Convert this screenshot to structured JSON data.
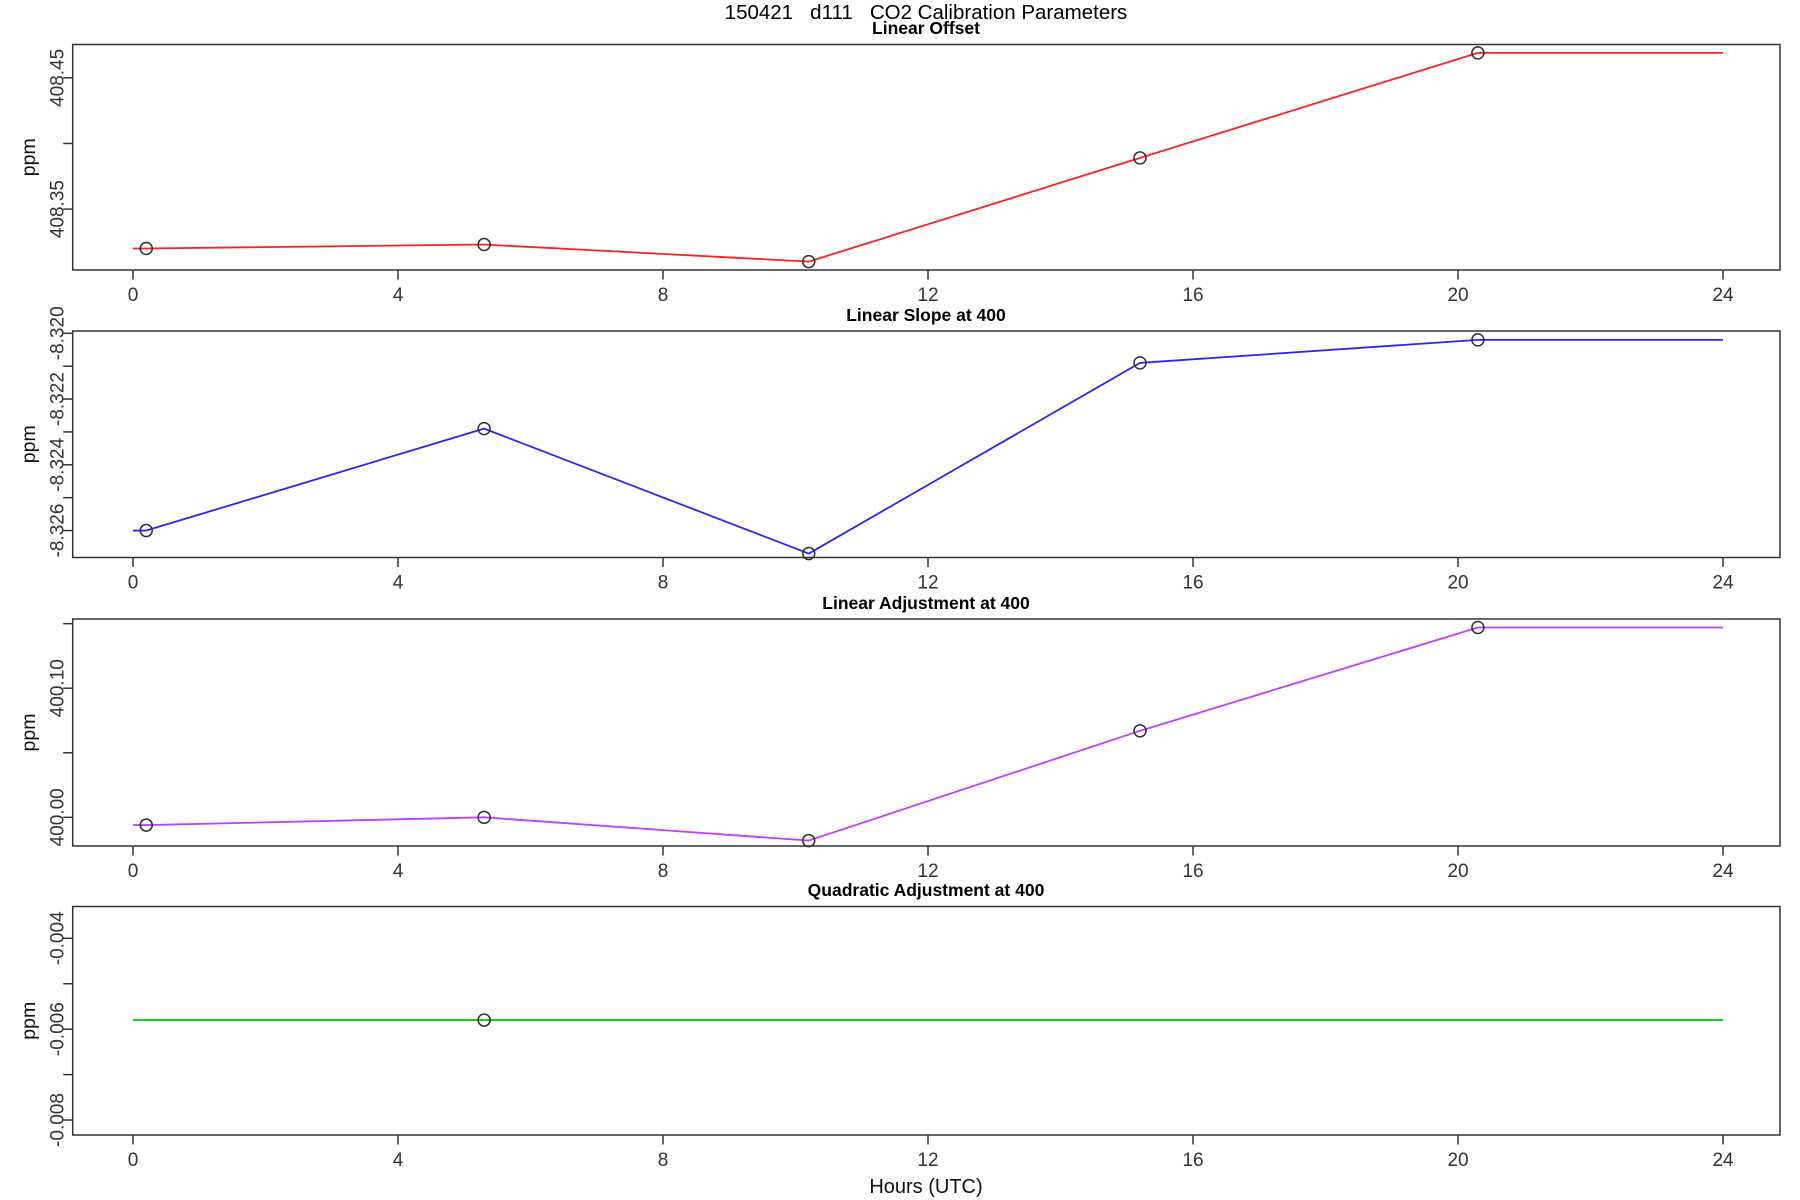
{
  "page": {
    "main_title": "150421   d111   CO2 Calibration Parameters",
    "x_axis_label": "Hours (UTC)"
  },
  "x_axis": {
    "xlim": [
      -0.91,
      24.86
    ],
    "ticks": [
      0,
      4,
      8,
      12,
      16,
      20,
      24
    ]
  },
  "chart_data": [
    {
      "type": "line",
      "title": "Linear Offset",
      "ylabel": "ppm",
      "color": "#ff2020",
      "x": [
        0.2,
        5.3,
        10.2,
        15.2,
        20.3
      ],
      "values": [
        408.32,
        408.323,
        408.31,
        408.389,
        408.469
      ],
      "line_span_x": [
        0,
        24
      ],
      "ylim": [
        408.3036,
        408.4754
      ],
      "yticks": [
        {
          "v": 408.35,
          "label": "408.35"
        },
        {
          "v": 408.4,
          "label": ""
        },
        {
          "v": 408.45,
          "label": "408.45"
        }
      ]
    },
    {
      "type": "line",
      "title": "Linear Slope at 400",
      "ylabel": "ppm",
      "color": "#2525ff",
      "x": [
        0.2,
        5.3,
        10.2,
        15.2,
        20.3
      ],
      "values": [
        -8.326,
        -8.3229,
        -8.3267,
        -8.3209,
        -8.3202
      ],
      "line_span_x": [
        0,
        24
      ],
      "ylim": [
        -8.32682,
        -8.31993
      ],
      "yticks": [
        {
          "v": -8.326,
          "label": "-8.326"
        },
        {
          "v": -8.325,
          "label": ""
        },
        {
          "v": -8.324,
          "label": "-8.324"
        },
        {
          "v": -8.323,
          "label": ""
        },
        {
          "v": -8.322,
          "label": "-8.322"
        },
        {
          "v": -8.321,
          "label": ""
        },
        {
          "v": -8.32,
          "label": "-8.320"
        }
      ]
    },
    {
      "type": "line",
      "title": "Linear Adjustment at 400",
      "ylabel": "ppm",
      "color": "#bf3eff",
      "x": [
        0.2,
        5.3,
        10.2,
        15.2,
        20.3
      ],
      "values": [
        399.994,
        400.0,
        399.982,
        400.067,
        400.147
      ],
      "line_span_x": [
        0,
        24
      ],
      "ylim": [
        399.9778,
        400.1536
      ],
      "yticks": [
        {
          "v": 400.0,
          "label": "400.00"
        },
        {
          "v": 400.05,
          "label": ""
        },
        {
          "v": 400.1,
          "label": "400.10"
        },
        {
          "v": 400.15,
          "label": ""
        }
      ]
    },
    {
      "type": "line",
      "title": "Quadratic Adjustment at 400",
      "ylabel": "ppm",
      "color": "#00d000",
      "x": [
        5.3
      ],
      "values": [
        -0.0058
      ],
      "line_span_x": [
        0,
        24
      ],
      "ylim": [
        -0.00833,
        -0.0033
      ],
      "yticks": [
        {
          "v": -0.008,
          "label": "-0.008"
        },
        {
          "v": -0.007,
          "label": ""
        },
        {
          "v": -0.006,
          "label": "-0.006"
        },
        {
          "v": -0.005,
          "label": ""
        },
        {
          "v": -0.004,
          "label": "-0.004"
        }
      ]
    }
  ]
}
